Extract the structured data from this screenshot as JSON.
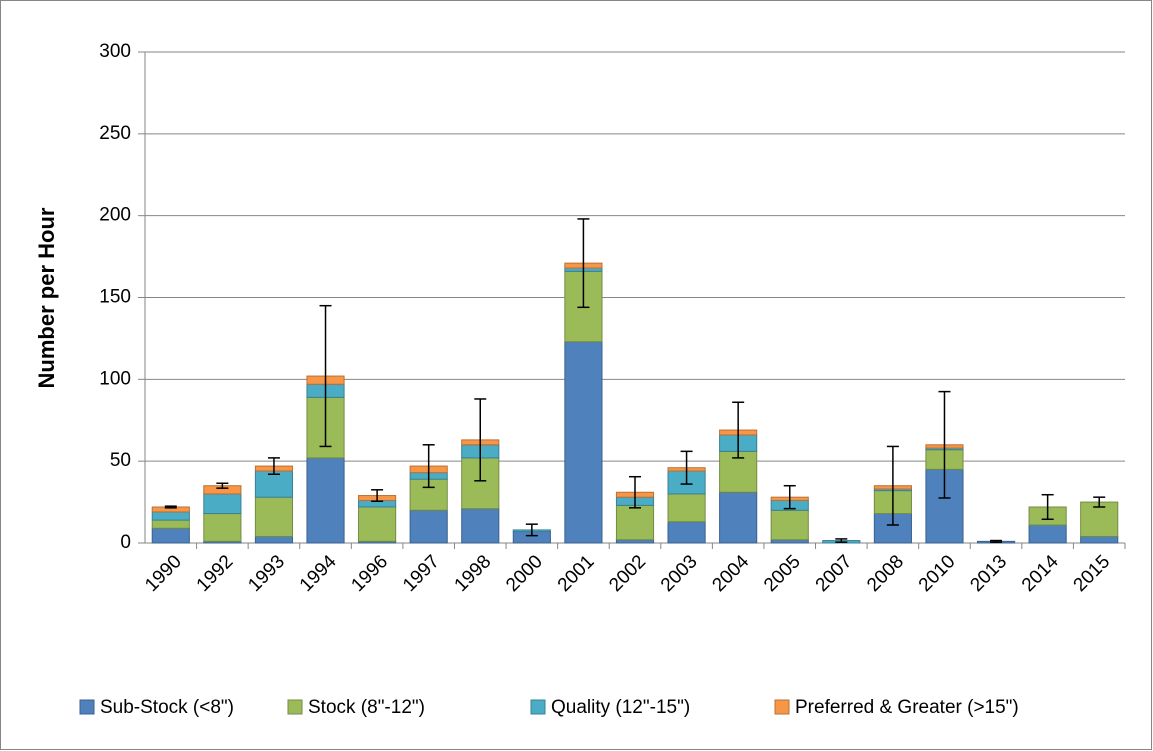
{
  "chart_data": {
    "type": "stacked-bar",
    "y_label": "Number per Hour",
    "categories": [
      "1990",
      "1992",
      "1993",
      "1994",
      "1996",
      "1997",
      "1998",
      "2000",
      "2001",
      "2002",
      "2003",
      "2004",
      "2005",
      "2007",
      "2008",
      "2010",
      "2013",
      "2014",
      "2015"
    ],
    "series": [
      {
        "name": "Sub-Stock (<8\")",
        "color": "#4f81bd",
        "values": [
          9,
          1,
          4,
          52,
          1,
          20,
          21,
          7,
          123,
          2,
          13,
          31,
          2,
          0,
          18,
          45,
          1,
          11,
          4
        ]
      },
      {
        "name": "Stock (8\"-12\")",
        "color": "#9bbb59",
        "values": [
          5,
          17,
          24,
          37,
          21,
          19,
          31,
          0,
          43,
          21,
          17,
          25,
          18,
          0,
          14,
          12,
          0,
          11,
          21
        ]
      },
      {
        "name": "Quality (12\"-15\")",
        "color": "#4bacc6",
        "values": [
          5,
          12,
          16,
          8,
          4,
          4,
          8,
          1,
          2,
          5,
          14,
          10,
          6,
          1.5,
          1,
          1,
          0,
          0,
          0
        ]
      },
      {
        "name": "Preferred & Greater (>15\")",
        "color": "#f79646",
        "values": [
          3,
          5,
          3,
          5,
          3,
          4,
          3,
          0,
          3,
          3,
          2,
          3,
          2,
          0,
          2,
          2,
          0,
          0,
          0
        ]
      }
    ],
    "errors": [
      0.5,
      1.5,
      5,
      43,
      3.5,
      13,
      25,
      3.5,
      27,
      9.5,
      10,
      17,
      7,
      1,
      24,
      32.5,
      0.5,
      7.5,
      3
    ],
    "ylim": [
      0,
      300
    ],
    "yticks": [
      0,
      50,
      100,
      150,
      200,
      250,
      300
    ],
    "grid": true
  }
}
